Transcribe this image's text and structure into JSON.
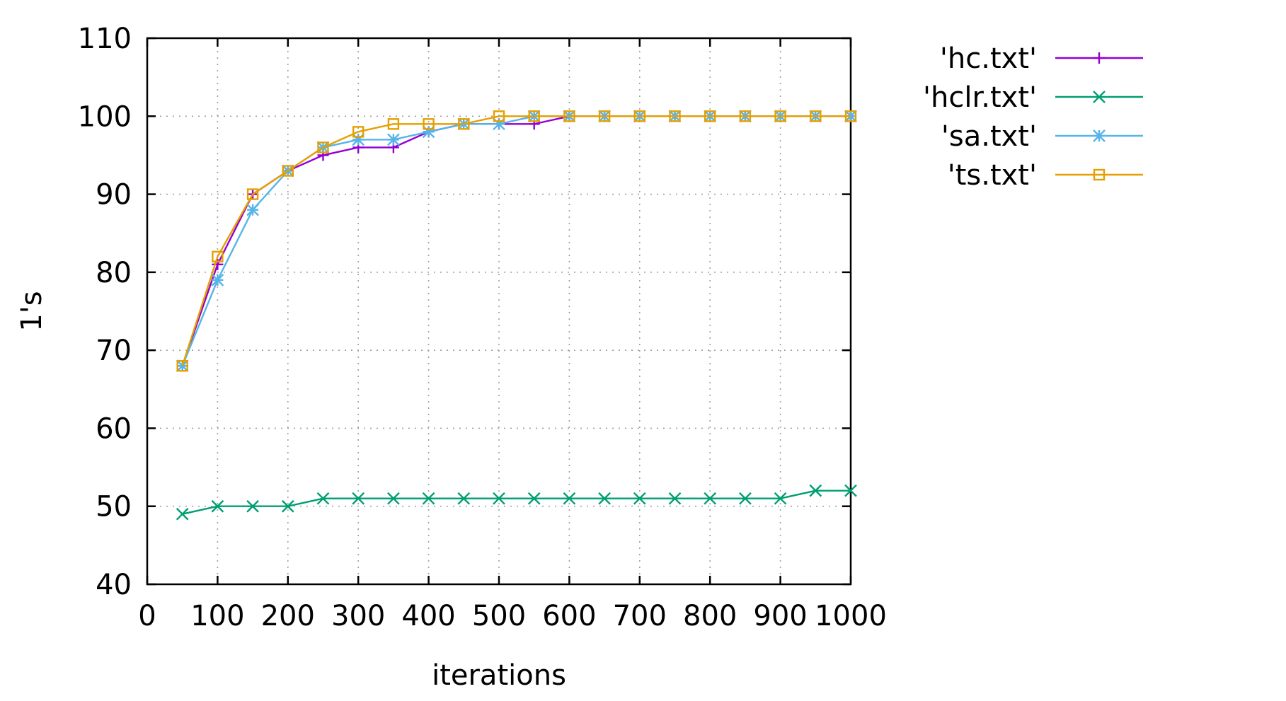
{
  "chart_data": {
    "type": "line",
    "xlabel": "iterations",
    "ylabel": "1's",
    "xlim": [
      0,
      1000
    ],
    "ylim": [
      40,
      110
    ],
    "xticks": [
      0,
      100,
      200,
      300,
      400,
      500,
      600,
      700,
      800,
      900,
      1000
    ],
    "yticks": [
      40,
      50,
      60,
      70,
      80,
      90,
      100,
      110
    ],
    "grid": true,
    "legend_position": "outside-top-right",
    "x": [
      50,
      100,
      150,
      200,
      250,
      300,
      350,
      400,
      450,
      500,
      550,
      600,
      650,
      700,
      750,
      800,
      850,
      900,
      950,
      1000
    ],
    "series": [
      {
        "name": "'hc.txt'",
        "color": "#9400d3",
        "marker": "plus",
        "values": [
          68,
          81,
          90,
          93,
          95,
          96,
          96,
          98,
          99,
          99,
          99,
          100,
          100,
          100,
          100,
          100,
          100,
          100,
          100,
          100
        ]
      },
      {
        "name": "'hclr.txt'",
        "color": "#009e73",
        "marker": "cross",
        "values": [
          49,
          50,
          50,
          50,
          51,
          51,
          51,
          51,
          51,
          51,
          51,
          51,
          51,
          51,
          51,
          51,
          51,
          51,
          52,
          52
        ]
      },
      {
        "name": "'sa.txt'",
        "color": "#56b4e9",
        "marker": "star",
        "values": [
          68,
          79,
          88,
          93,
          96,
          97,
          97,
          98,
          99,
          99,
          100,
          100,
          100,
          100,
          100,
          100,
          100,
          100,
          100,
          100
        ]
      },
      {
        "name": "'ts.txt'",
        "color": "#e69f00",
        "marker": "square",
        "values": [
          68,
          82,
          90,
          93,
          96,
          98,
          99,
          99,
          99,
          100,
          100,
          100,
          100,
          100,
          100,
          100,
          100,
          100,
          100,
          100
        ]
      }
    ]
  }
}
